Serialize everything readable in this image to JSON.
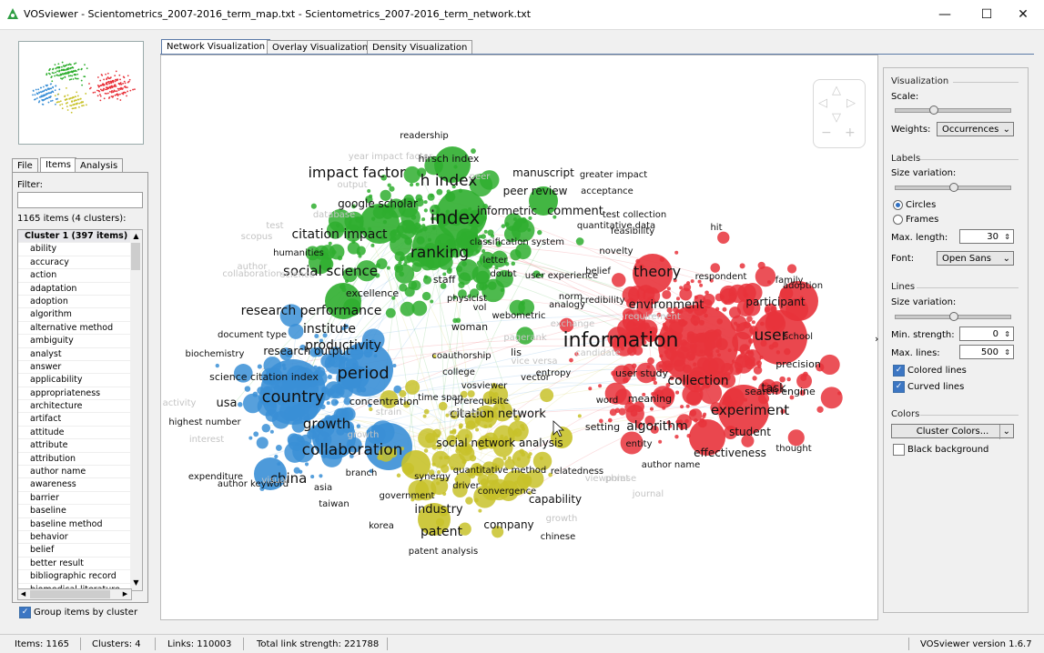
{
  "window": {
    "title": "VOSviewer - Scientometrics_2007-2016_term_map.txt - Scientometrics_2007-2016_term_network.txt",
    "minimize": "—",
    "maximize": "☐",
    "close": "✕"
  },
  "left": {
    "tabs": [
      "File",
      "Items",
      "Analysis"
    ],
    "filter_label": "Filter:",
    "filter_value": "",
    "count_label": "1165 items (4 clusters):",
    "list_header": "Cluster 1 (397 items)",
    "items": [
      "ability",
      "accuracy",
      "action",
      "adaptation",
      "adoption",
      "algorithm",
      "alternative method",
      "ambiguity",
      "analyst",
      "answer",
      "applicability",
      "appropriateness",
      "architecture",
      "artifact",
      "attitude",
      "attribute",
      "attribution",
      "author name",
      "awareness",
      "barrier",
      "baseline",
      "baseline method",
      "behavior",
      "belief",
      "better result",
      "bibliographic record",
      "biomedical literature"
    ],
    "group_label": "Group items by cluster",
    "group_checked": true
  },
  "viz_tabs": [
    "Network Visualization",
    "Overlay Visualization",
    "Density Visualization"
  ],
  "colors": {
    "cluster1": "#e8333b",
    "cluster2": "#2fae2f",
    "cluster3": "#3a8fd6",
    "cluster4": "#c8c22a",
    "accent": "#3c76c3"
  },
  "map_labels": {
    "red": [
      "information",
      "user",
      "experiment",
      "theory",
      "collection",
      "participant",
      "task",
      "algorithm",
      "environment",
      "student",
      "effectiveness",
      "precision",
      "search engine",
      "user study",
      "setting",
      "meaning",
      "word",
      "entity",
      "author name",
      "feasibility",
      "novelty",
      "respondent",
      "adoption",
      "belief",
      "credibility",
      "user experience",
      "norm",
      "thought",
      "school",
      "family",
      "test collection",
      "hit"
    ],
    "green": [
      "index",
      "h index",
      "ranking",
      "impact factor",
      "citation impact",
      "social science",
      "research performance",
      "productivity",
      "institute",
      "comment",
      "peer review",
      "manuscript",
      "google scholar",
      "informetric",
      "acceptance",
      "staff",
      "excellence",
      "woman",
      "humanities",
      "hirsch index",
      "readership",
      "greater impact",
      "letter",
      "webometric",
      "vol",
      "physicist",
      "doubt",
      "quantitative data",
      "classification system",
      "analogy"
    ],
    "blue": [
      "country",
      "period",
      "collaboration",
      "growth",
      "china",
      "usa",
      "concentration",
      "research output",
      "science citation index",
      "document type",
      "biochemistry",
      "highest number",
      "author keyword",
      "asia",
      "taiwan",
      "branch",
      "expenditure",
      "global trend"
    ],
    "yellow": [
      "citation network",
      "social network analysis",
      "patent",
      "industry",
      "company",
      "capability",
      "korea",
      "patent analysis",
      "chinese",
      "lis",
      "coauthorship",
      "college",
      "vector",
      "entropy",
      "vosviewer",
      "time span",
      "quantitative method",
      "synergy",
      "driver",
      "relatedness",
      "convergence",
      "prerequisite",
      "government"
    ],
    "faded": [
      "year impact factor",
      "output",
      "database",
      "scopus",
      "test",
      "collaboration",
      "author",
      "science",
      "peer",
      "growth",
      "phrase",
      "journal",
      "visual",
      "strain",
      "concept",
      "pagerank",
      "exchange",
      "candidate",
      "requirement",
      "viewpoint",
      "interest",
      "activity",
      "vice versa",
      "growth"
    ]
  },
  "right": {
    "visualization": "Visualization",
    "scale_label": "Scale:",
    "weights_label": "Weights:",
    "weights_value": "Occurrences",
    "labels_title": "Labels",
    "size_variation": "Size variation:",
    "circles": "Circles",
    "frames": "Frames",
    "max_length_label": "Max. length:",
    "max_length_value": "30",
    "font_label": "Font:",
    "font_value": "Open Sans",
    "lines_title": "Lines",
    "lines_size_variation": "Size variation:",
    "min_strength_label": "Min. strength:",
    "min_strength_value": "0",
    "max_lines_label": "Max. lines:",
    "max_lines_value": "500",
    "colored_lines": "Colored lines",
    "curved_lines": "Curved lines",
    "colors_title": "Colors",
    "cluster_colors": "Cluster Colors...",
    "black_background": "Black background",
    "collapse_arrow": "›"
  },
  "status": {
    "items": "Items:  1165",
    "clusters": "Clusters:  4",
    "links": "Links:  110003",
    "total": "Total link strength:  221788",
    "version": "VOSviewer version 1.6.7"
  }
}
